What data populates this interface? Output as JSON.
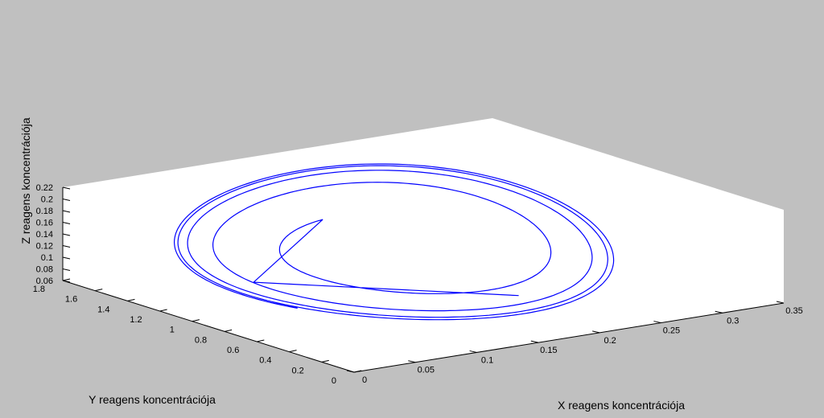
{
  "chart_data": {
    "type": "line",
    "projection": "3d",
    "title": "",
    "xlabel": "X reagens koncentrációja",
    "ylabel": "Y reagens koncentrációja",
    "zlabel": "Z reagens koncentrációja",
    "xlim": [
      0,
      0.35
    ],
    "ylim": [
      0,
      1.8
    ],
    "zlim": [
      0.06,
      0.22
    ],
    "x_ticks": [
      "0",
      "0.05",
      "0.1",
      "0.15",
      "0.2",
      "0.25",
      "0.3",
      "0.35"
    ],
    "y_ticks": [
      "0",
      "0.2",
      "0.4",
      "0.6",
      "0.8",
      "1",
      "1.2",
      "1.4",
      "1.6",
      "1.8"
    ],
    "z_ticks": [
      "0.06",
      "0.08",
      "0.1",
      "0.12",
      "0.14",
      "0.16",
      "0.18",
      "0.2",
      "0.22"
    ],
    "grid": false,
    "line_color": "#0000ff",
    "background_color": "#ffffff",
    "figure_color": "#c0c0c0",
    "trajectory": {
      "start": {
        "x": 0.2,
        "y": 0.5,
        "z": 0.08
      },
      "transient_start": {
        "x": 0.05,
        "y": 1.0,
        "z": 0.11
      },
      "limit_cycle": {
        "x_range": [
          0.01,
          0.3
        ],
        "y_range": [
          0.1,
          1.75
        ],
        "z_range": [
          0.085,
          0.2
        ]
      },
      "turns": 4.3
    }
  }
}
